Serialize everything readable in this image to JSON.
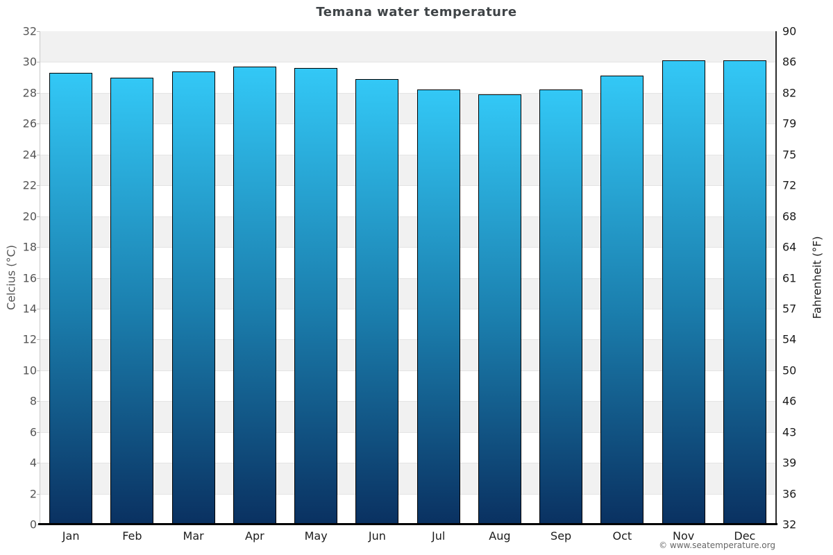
{
  "chart_data": {
    "type": "bar",
    "title": "Temana water temperature",
    "categories": [
      "Jan",
      "Feb",
      "Mar",
      "Apr",
      "May",
      "Jun",
      "Jul",
      "Aug",
      "Sep",
      "Oct",
      "Nov",
      "Dec"
    ],
    "values": [
      29.3,
      29.0,
      29.4,
      29.7,
      29.6,
      28.9,
      28.2,
      27.9,
      28.2,
      29.1,
      30.1,
      30.1
    ],
    "xlabel": "",
    "ylabel_left": "Celcius (°C)",
    "ylabel_right": "Fahrenheit (°F)",
    "ylim": [
      0,
      32
    ],
    "yticks_celsius": [
      "32",
      "30",
      "28",
      "26",
      "24",
      "22",
      "20",
      "18",
      "16",
      "14",
      "12",
      "10",
      "8",
      "6",
      "4",
      "2",
      "0"
    ],
    "yticks_fahrenheit": [
      "90",
      "86",
      "82",
      "79",
      "75",
      "72",
      "68",
      "64",
      "61",
      "57",
      "54",
      "50",
      "46",
      "43",
      "39",
      "36",
      "32"
    ],
    "legend": null,
    "grid": "alternating-horizontal-bands",
    "band_color_dark": "#f1f1f1",
    "band_color_light": "#ffffff",
    "band_line_color": "#e4e4e4",
    "bar_gradient_top": "#33c8f6",
    "bar_gradient_mid": "#1b7fae",
    "bar_gradient_bottom": "#0a3161",
    "bar_border_color": "#000000"
  },
  "footer": {
    "copyright": "© www.seatemperature.org"
  }
}
